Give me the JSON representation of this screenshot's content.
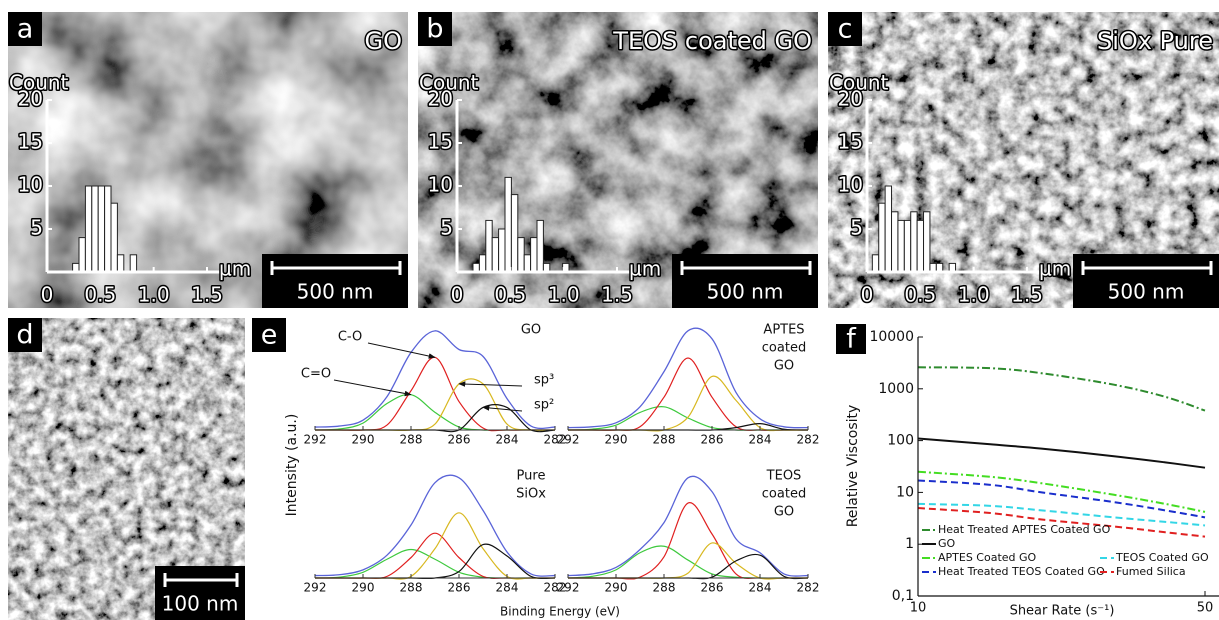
{
  "panels": [
    {
      "letter": "a",
      "title": "GO",
      "scale_bar": "500 nm"
    },
    {
      "letter": "b",
      "title": "TEOS coated GO",
      "scale_bar": "500 nm"
    },
    {
      "letter": "c",
      "title": "SiOx Pure",
      "scale_bar": "500 nm"
    },
    {
      "letter": "d",
      "scale_bar": "100 nm"
    },
    {
      "letter": "e",
      "ylabel": "Intensity (a.u.)",
      "xlabel": "Binding Energy (eV)"
    },
    {
      "letter": "f"
    }
  ],
  "chart_data": [
    {
      "type": "histogram",
      "ylabel": "Count",
      "xlabel": "µm",
      "bins": [
        0.24,
        0.3,
        0.36,
        0.42,
        0.48,
        0.54,
        0.6,
        0.66,
        0.72,
        0.78,
        0.84
      ],
      "values": [
        1,
        4,
        10,
        10,
        10,
        10,
        8,
        2,
        0,
        2
      ],
      "xlim": [
        0,
        1.5
      ],
      "ylim": [
        0,
        20
      ],
      "xticks": [
        0,
        0.5,
        {
          "value": 1,
          "label": "1.0"
        },
        1.5
      ],
      "yticks": [
        5,
        10,
        15,
        20
      ]
    },
    {
      "type": "histogram",
      "ylabel": "Count",
      "xlabel": "µm",
      "bins": [
        0.15,
        0.21,
        0.27,
        0.33,
        0.39,
        0.45,
        0.51,
        0.57,
        0.63,
        0.69,
        0.75,
        0.81,
        0.87,
        0.93,
        0.99,
        1.05
      ],
      "values": [
        1,
        2,
        6,
        4,
        5,
        11,
        9,
        4,
        2,
        4,
        6,
        1,
        0,
        0,
        1
      ],
      "xlim": [
        0,
        1.5
      ],
      "ylim": [
        0,
        20
      ],
      "xticks": [
        0,
        0.5,
        {
          "value": 1,
          "label": "1.0"
        },
        1.5
      ],
      "yticks": [
        5,
        10,
        15,
        20
      ]
    },
    {
      "type": "histogram",
      "ylabel": "Count",
      "xlabel": "µm",
      "bins": [
        0.05,
        0.11,
        0.17,
        0.23,
        0.29,
        0.35,
        0.41,
        0.47,
        0.53,
        0.59,
        0.65,
        0.71,
        0.77,
        0.83
      ],
      "values": [
        2,
        8,
        10,
        7,
        6,
        6,
        7,
        6,
        7,
        1,
        1,
        0,
        1
      ],
      "xlim": [
        0,
        1.5
      ],
      "ylim": [
        0,
        20
      ],
      "xticks": [
        0,
        0.5,
        {
          "value": 1,
          "label": "1.0"
        },
        1.5
      ],
      "yticks": [
        5,
        10,
        15,
        20
      ]
    },
    {
      "type": "spectrum",
      "title_lines": [
        "GO"
      ],
      "annotations": [
        "C-O",
        "C=O",
        "sp³",
        "sp²"
      ],
      "x": [
        292,
        291,
        290,
        289,
        288,
        287,
        286,
        285,
        284,
        283,
        282
      ],
      "xlim": [
        292,
        282
      ],
      "xticks": [
        292,
        290,
        288,
        286,
        284,
        282
      ],
      "ylim": [
        0,
        110
      ],
      "series": [
        {
          "color": "#5a64d8",
          "values": [
            3,
            4,
            10,
            34,
            79,
            101,
            82,
            75,
            32,
            4,
            3
          ]
        },
        {
          "color": "#3ec93e",
          "values": [
            0,
            1,
            7,
            27,
            36,
            18,
            3,
            0,
            0,
            0,
            0
          ]
        },
        {
          "color": "#e02020",
          "values": [
            0,
            0,
            0,
            5,
            40,
            74,
            29,
            2,
            0,
            0,
            0
          ]
        },
        {
          "color": "#d8b820",
          "values": [
            0,
            0,
            0,
            0,
            0,
            6,
            47,
            47,
            6,
            0,
            0
          ]
        },
        {
          "color": "#111111",
          "values": [
            0,
            0,
            0,
            0,
            0,
            0,
            0,
            23,
            23,
            0,
            0
          ]
        }
      ]
    },
    {
      "type": "spectrum",
      "title_lines": [
        "APTES",
        "coated",
        "GO"
      ],
      "x": [
        292,
        291,
        290,
        289,
        288,
        287,
        286,
        285,
        284,
        283,
        282
      ],
      "xlim": [
        292,
        282
      ],
      "xticks": [
        292,
        290,
        288,
        286,
        284,
        282
      ],
      "ylim": [
        0,
        135
      ],
      "series": [
        {
          "color": "#5a64d8",
          "values": [
            3,
            4,
            9,
            29,
            73,
            124,
            114,
            47,
            14,
            4,
            3
          ]
        },
        {
          "color": "#3ec93e",
          "values": [
            0,
            1,
            6,
            22,
            29,
            15,
            3,
            0,
            0,
            0,
            0
          ]
        },
        {
          "color": "#e02020",
          "values": [
            0,
            0,
            0,
            4,
            41,
            90,
            41,
            4,
            0,
            0,
            0
          ]
        },
        {
          "color": "#d8b820",
          "values": [
            0,
            0,
            0,
            0,
            0,
            16,
            67,
            37,
            3,
            0,
            0
          ]
        },
        {
          "color": "#111111",
          "values": [
            0,
            0,
            0,
            0,
            0,
            0,
            0,
            3,
            8,
            1,
            0
          ]
        }
      ]
    },
    {
      "type": "spectrum",
      "title_lines": [
        "Pure",
        "SiOx"
      ],
      "x": [
        292,
        291,
        290,
        289,
        288,
        287,
        286,
        285,
        284,
        283,
        282
      ],
      "xlim": [
        292,
        282
      ],
      "xticks": [
        292,
        290,
        288,
        286,
        284,
        282
      ],
      "ylim": [
        0,
        135
      ],
      "series": [
        {
          "color": "#5a64d8",
          "values": [
            3,
            4,
            10,
            28,
            65,
            117,
            123,
            83,
            32,
            5,
            3
          ]
        },
        {
          "color": "#3ec93e",
          "values": [
            0,
            1,
            7,
            23,
            35,
            23,
            7,
            1,
            0,
            0,
            0
          ]
        },
        {
          "color": "#e02020",
          "values": [
            0,
            0,
            0,
            2,
            25,
            55,
            25,
            2,
            0,
            0,
            0
          ]
        },
        {
          "color": "#d8b820",
          "values": [
            0,
            0,
            0,
            0,
            2,
            36,
            80,
            36,
            2,
            0,
            0
          ]
        },
        {
          "color": "#111111",
          "values": [
            0,
            0,
            0,
            0,
            0,
            0,
            8,
            41,
            27,
            2,
            0
          ]
        }
      ]
    },
    {
      "type": "spectrum",
      "title_lines": [
        "TEOS",
        "coated",
        "GO"
      ],
      "x": [
        292,
        291,
        290,
        289,
        288,
        287,
        286,
        285,
        284,
        283,
        282
      ],
      "xlim": [
        292,
        282
      ],
      "xticks": [
        292,
        290,
        288,
        286,
        284,
        282
      ],
      "ylim": [
        0,
        135
      ],
      "series": [
        {
          "color": "#5a64d8",
          "values": [
            3,
            5,
            13,
            35,
            68,
            123,
            106,
            48,
            31,
            5,
            3
          ]
        },
        {
          "color": "#3ec93e",
          "values": [
            0,
            2,
            10,
            31,
            39,
            22,
            5,
            1,
            0,
            0,
            0
          ]
        },
        {
          "color": "#e02020",
          "values": [
            0,
            0,
            0,
            1,
            26,
            92,
            54,
            5,
            0,
            0,
            0
          ]
        },
        {
          "color": "#d8b820",
          "values": [
            0,
            0,
            0,
            0,
            0,
            6,
            43,
            18,
            0,
            0,
            0
          ]
        },
        {
          "color": "#111111",
          "values": [
            0,
            0,
            0,
            0,
            0,
            0,
            1,
            21,
            28,
            2,
            0
          ]
        }
      ]
    },
    {
      "type": "line",
      "ylabel": "Relative Viscosity",
      "xlabel": "Shear Rate (s⁻¹)",
      "log_x": true,
      "log_y": true,
      "legend": "lower left",
      "x": [
        10,
        15,
        20,
        30,
        40,
        50
      ],
      "xlim": [
        10,
        50
      ],
      "ylim": [
        0.1,
        10000
      ],
      "xticks": [
        10,
        50
      ],
      "yticks": [
        {
          "value": 0.1,
          "label": "0,1"
        },
        1,
        10,
        100,
        1000,
        10000
      ],
      "series": [
        {
          "name": "Heat Treated APTES Coated GO",
          "color": "#2e8b2e",
          "style": "dashdot",
          "values": [
            2600,
            2500,
            2000,
            1200,
            700,
            380
          ]
        },
        {
          "name": "GO",
          "color": "#111111",
          "style": "solid",
          "values": [
            110,
            85,
            70,
            50,
            38,
            30
          ]
        },
        {
          "name": "APTES Coated GO",
          "color": "#44dd22",
          "style": "dashdot",
          "values": [
            25,
            20,
            15,
            9,
            6,
            4.2
          ]
        },
        {
          "name": "Heat Treated TEOS Coated GO",
          "color": "#1a2ecc",
          "style": "dashed",
          "values": [
            17,
            14,
            10,
            6.5,
            4.5,
            3.3
          ]
        },
        {
          "name": "TEOS Coated GO",
          "color": "#33d6e6",
          "style": "dashed",
          "values": [
            6,
            5.5,
            4.5,
            3.3,
            2.7,
            2.3
          ]
        },
        {
          "name": "Fumed Silica",
          "color": "#e02020",
          "style": "dashed",
          "values": [
            5,
            4,
            3,
            2.2,
            1.7,
            1.4
          ]
        }
      ]
    }
  ]
}
